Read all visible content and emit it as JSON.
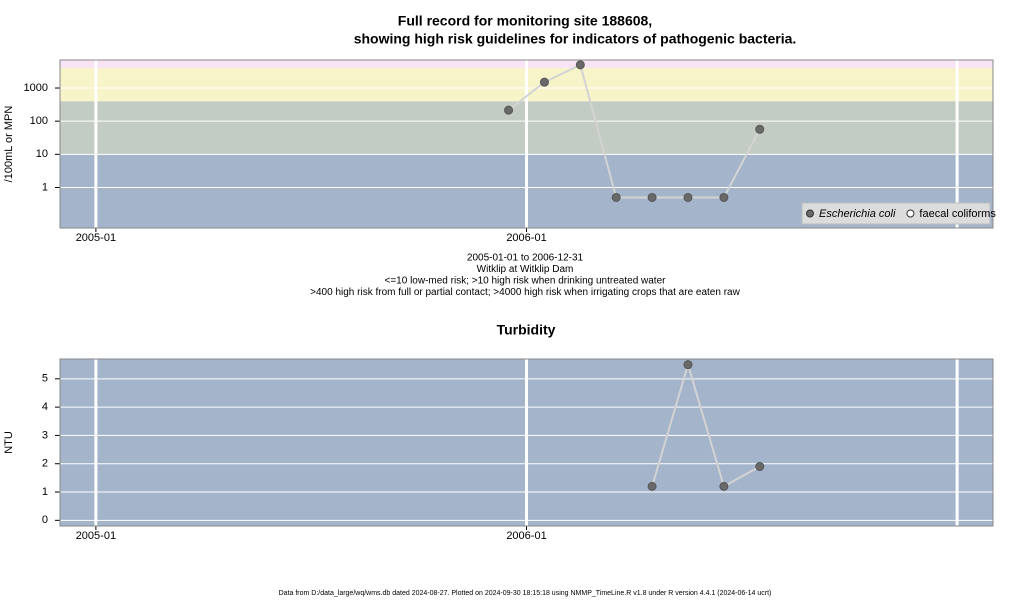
{
  "chart_data": [
    {
      "type": "line",
      "title": [
        "Full record for monitoring site 188608,",
        "showing high risk guidelines for indicators of pathogenic bacteria."
      ],
      "notes": [
        "2005-01-01 to 2006-12-31",
        "Witklip at Witklip Dam",
        "<=10 low-med risk; >10 high risk when drinking untreated water",
        ">400 high risk from full or partial contact; >4000 high risk when irrigating crops that are eaten raw"
      ],
      "y_label": "/100mL or MPN",
      "log_y": true,
      "x": [
        "2005-12",
        "2006-01",
        "2006-02",
        "2006-03",
        "2006-04",
        "2006-05",
        "2006-06",
        "2006-07"
      ],
      "series": [
        {
          "name": "Escherichia coli",
          "color": "#696969",
          "line_color": "#d3d3d3",
          "values": [
            215,
            1500,
            5000,
            0.5,
            0.5,
            0.5,
            0.5,
            57
          ]
        },
        {
          "name": "faecal coliforms",
          "color": "#ffffff",
          "line_color": "#d3d3d3",
          "values": [
            null,
            null,
            null,
            null,
            null,
            null,
            null,
            null
          ]
        }
      ],
      "bands": [
        {
          "from": 0.06,
          "to": 10,
          "color": "#a3b4cb"
        },
        {
          "from": 10,
          "to": 400,
          "color": "#c3ccc3"
        },
        {
          "from": 400,
          "to": 4000,
          "color": "#f7f4c9"
        },
        {
          "from": 4000,
          "to": 7000,
          "color": "#f8e4f4"
        }
      ],
      "xlim": [
        "2004-12",
        "2007-01"
      ],
      "xticks": [
        "2005-01",
        "2006-01"
      ],
      "year_lines": [
        "2005-01",
        "2006-01",
        "2007-01"
      ],
      "ylim": [
        0.06,
        7000
      ],
      "yticks": [
        1,
        10,
        100,
        1000
      ],
      "grid": true,
      "legend": "bottom-right"
    },
    {
      "type": "line",
      "title": [
        "Turbidity"
      ],
      "y_label": "NTU",
      "log_y": false,
      "x": [
        "2006-04",
        "2006-05",
        "2006-06",
        "2006-07"
      ],
      "series": [
        {
          "name": "Turbidity",
          "color": "#696969",
          "line_color": "#d3d3d3",
          "values": [
            1.2,
            5.5,
            1.2,
            1.9
          ]
        }
      ],
      "bands": [
        {
          "from": -0.2,
          "to": 5.7,
          "color": "#a3b4cb"
        }
      ],
      "xlim": [
        "2004-12",
        "2007-01"
      ],
      "xticks": [
        "2005-01",
        "2006-01"
      ],
      "year_lines": [
        "2005-01",
        "2006-01",
        "2007-01"
      ],
      "ylim": [
        -0.2,
        5.7
      ],
      "yticks": [
        0,
        1,
        2,
        3,
        4,
        5
      ],
      "grid": true
    }
  ],
  "footnote": "Data from D:/data_large/wq/wms.db dated 2024-08-27. Plotted on 2024-09-30 18:15:18 using NMMP_TimeLine.R v1.8 under R version 4.4.1 (2024-06-14 ucrt)"
}
